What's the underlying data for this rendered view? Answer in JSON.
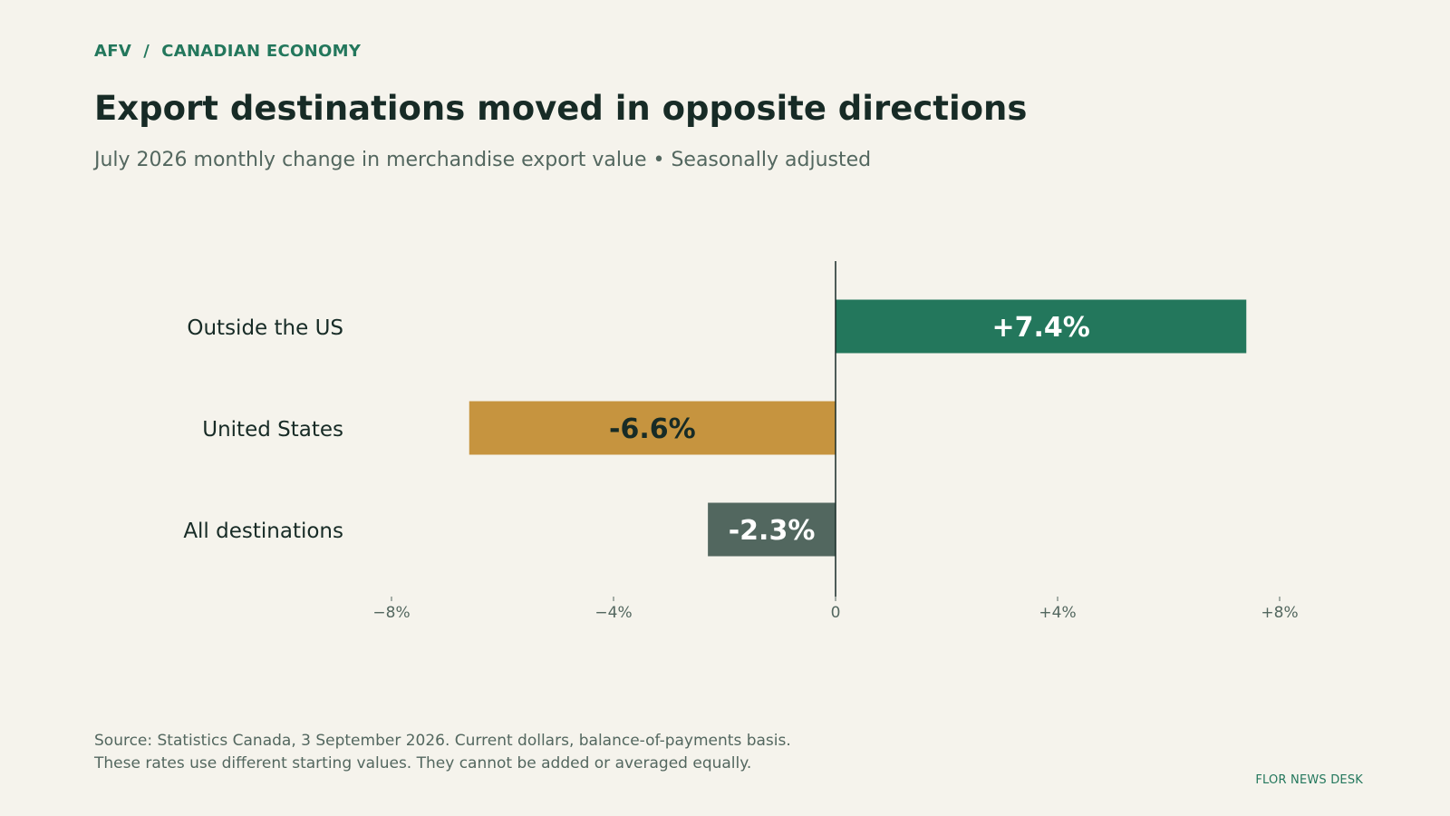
{
  "header": {
    "kicker": "AFV  /  CANADIAN ECONOMY",
    "title": "Export destinations moved in opposite directions",
    "subtitle": "July 2026 monthly change in merchandise export value • Seasonally adjusted"
  },
  "footer": {
    "source_line1": "Source: Statistics Canada, 3 September 2026. Current dollars, balance-of-payments basis.",
    "source_line2": "These rates use different starting values. They cannot be added or averaged equally.",
    "credit": "FLOR NEWS DESK"
  },
  "colors": {
    "background": "#f5f3ec",
    "text_dark": "#172b26",
    "text_muted": "#53675f",
    "accent_green": "#23775c",
    "accent_ochre": "#c6943f",
    "slate": "#52675f"
  },
  "chart_data": {
    "type": "bar",
    "orientation": "horizontal",
    "categories": [
      "Outside the US",
      "United States",
      "All destinations"
    ],
    "values": [
      7.4,
      -6.6,
      -2.3
    ],
    "data_labels": [
      "+7.4%",
      "-6.6%",
      "-2.3%"
    ],
    "bar_colors": [
      "#23775c",
      "#c6943f",
      "#52675f"
    ],
    "label_colors": [
      "#ffffff",
      "#172b26",
      "#ffffff"
    ],
    "xlim": [
      -8,
      8
    ],
    "xticks": [
      -8,
      -4,
      0,
      4,
      8
    ],
    "xtick_labels": [
      "−8%",
      "−4%",
      "0",
      "+4%",
      "+8%"
    ],
    "grid": false,
    "legend": "none"
  }
}
